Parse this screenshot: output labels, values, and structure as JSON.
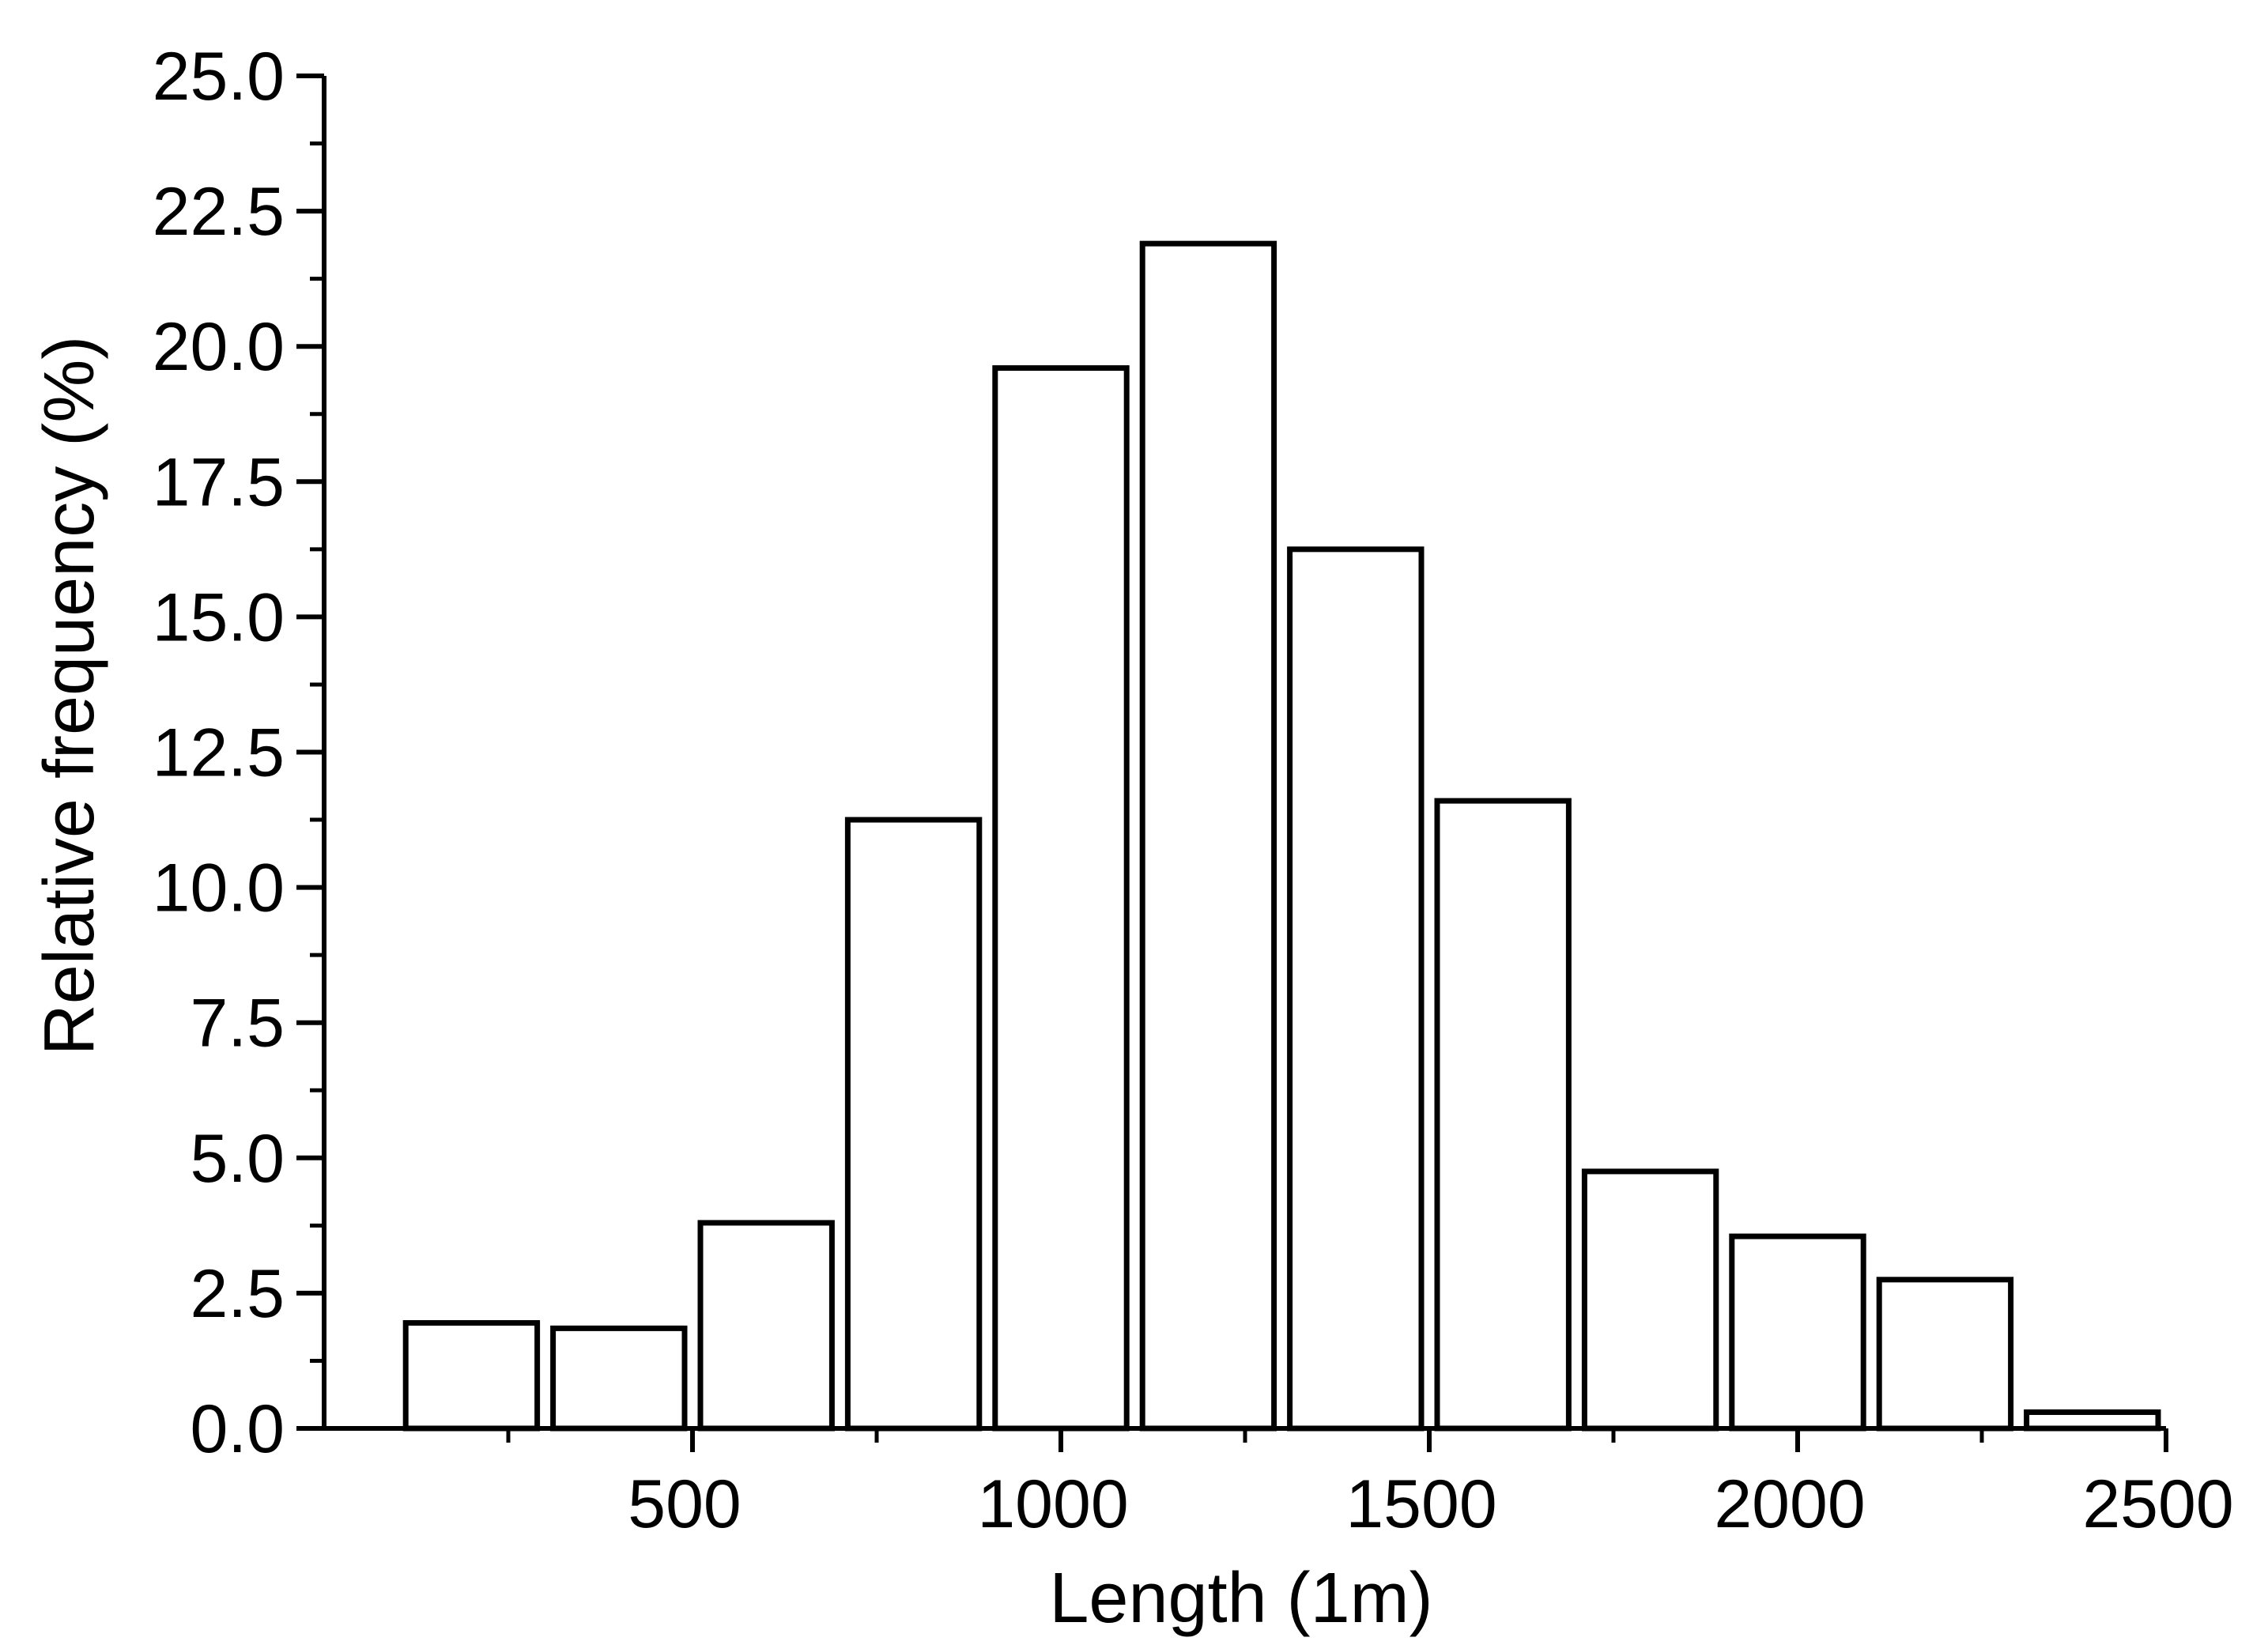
{
  "chart_data": {
    "type": "bar",
    "subtype": "histogram",
    "bins": [
      {
        "x0": 100,
        "x1": 300,
        "value": 1.95
      },
      {
        "x0": 300,
        "x1": 500,
        "value": 1.85
      },
      {
        "x0": 500,
        "x1": 700,
        "value": 3.8
      },
      {
        "x0": 700,
        "x1": 900,
        "value": 11.25
      },
      {
        "x0": 900,
        "x1": 1100,
        "value": 19.6
      },
      {
        "x0": 1100,
        "x1": 1300,
        "value": 21.9
      },
      {
        "x0": 1300,
        "x1": 1500,
        "value": 16.25
      },
      {
        "x0": 1500,
        "x1": 1700,
        "value": 11.6
      },
      {
        "x0": 1700,
        "x1": 1900,
        "value": 4.75
      },
      {
        "x0": 1900,
        "x1": 2100,
        "value": 3.55
      },
      {
        "x0": 2100,
        "x1": 2300,
        "value": 2.75
      },
      {
        "x0": 2300,
        "x1": 2500,
        "value": 0.3
      }
    ],
    "xlabel": "Length (1m)",
    "ylabel": "Relative frequency (%)",
    "xlim": [
      0,
      2500
    ],
    "ylim": [
      0,
      25
    ],
    "x_ticks": [
      500,
      1000,
      1500,
      2000,
      2500
    ],
    "x_tick_labels": [
      "500",
      "1000",
      "1500",
      "2000",
      "2500"
    ],
    "x_minor_ticks": [
      250,
      750,
      1250,
      1750,
      2250
    ],
    "y_ticks": [
      0,
      2.5,
      5,
      7.5,
      10,
      12.5,
      15,
      17.5,
      20,
      22.5,
      25
    ],
    "y_tick_labels": [
      "0.0",
      "2.5",
      "5.0",
      "7.5",
      "10.0",
      "12.5",
      "15.0",
      "17.5",
      "20.0",
      "22.5",
      "25.0"
    ],
    "y_minor_ticks": [
      1.25,
      3.75,
      6.25,
      8.75,
      11.25,
      13.75,
      16.25,
      18.75,
      21.25,
      23.75
    ],
    "bar_fill": "#ffffff",
    "bar_stroke": "#000000",
    "axis_color": "#000000",
    "grid": false,
    "legend": "none"
  }
}
